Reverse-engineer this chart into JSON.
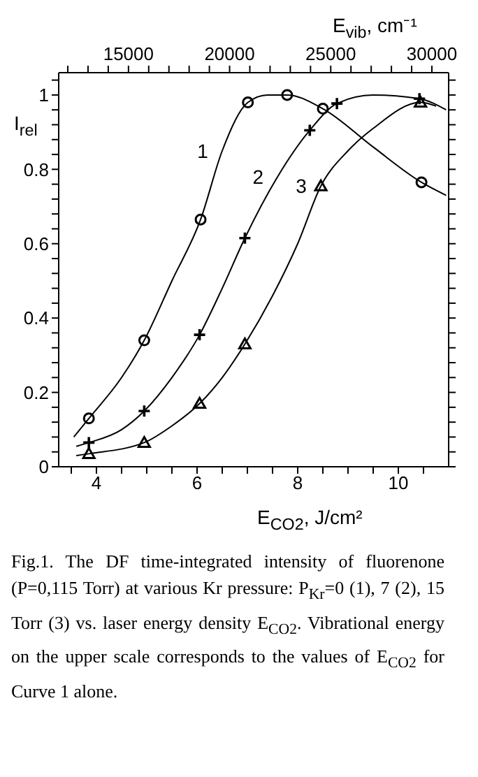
{
  "chart_data": {
    "type": "scatter",
    "xlabel": "E$_{CO2}$, J/cm²",
    "x2label": "E$_{vib}$, cm⁻¹",
    "ylabel": "I$_{rel}$",
    "xlim": [
      3.25,
      11
    ],
    "ylim": [
      0,
      1.06
    ],
    "x2lim": [
      11550,
      30830
    ],
    "xticks": [
      {
        "value": 3.5,
        "label": null
      },
      4,
      {
        "value": 4.5,
        "label": null
      },
      {
        "value": 5,
        "label": null
      },
      {
        "value": 5.5,
        "label": null
      },
      6,
      {
        "value": 6.5,
        "label": null
      },
      {
        "value": 7,
        "label": null
      },
      {
        "value": 7.5,
        "label": null
      },
      8,
      {
        "value": 8.5,
        "label": null
      },
      {
        "value": 9,
        "label": null
      },
      {
        "value": 9.5,
        "label": null
      },
      10,
      {
        "value": 10.5,
        "label": null
      }
    ],
    "x2ticks": [
      {
        "value": 12000,
        "label": null
      },
      {
        "value": 13000,
        "label": null
      },
      {
        "value": 14000,
        "label": null
      },
      15000,
      {
        "value": 16000,
        "label": null
      },
      {
        "value": 17000,
        "label": null
      },
      {
        "value": 18000,
        "label": null
      },
      {
        "value": 19000,
        "label": null
      },
      20000,
      {
        "value": 21000,
        "label": null
      },
      {
        "value": 22000,
        "label": null
      },
      {
        "value": 23000,
        "label": null
      },
      {
        "value": 24000,
        "label": null
      },
      25000,
      {
        "value": 26000,
        "label": null
      },
      {
        "value": 27000,
        "label": null
      },
      {
        "value": 28000,
        "label": null
      },
      {
        "value": 29000,
        "label": null
      },
      30000
    ],
    "yticks": [
      0,
      {
        "value": 0.04,
        "label": null
      },
      {
        "value": 0.08,
        "label": null
      },
      {
        "value": 0.12,
        "label": null
      },
      {
        "value": 0.16,
        "label": null
      },
      0.2,
      {
        "value": 0.24,
        "label": null
      },
      {
        "value": 0.28,
        "label": null
      },
      {
        "value": 0.32,
        "label": null
      },
      {
        "value": 0.36,
        "label": null
      },
      0.4,
      {
        "value": 0.44,
        "label": null
      },
      {
        "value": 0.48,
        "label": null
      },
      {
        "value": 0.52,
        "label": null
      },
      {
        "value": 0.56,
        "label": null
      },
      0.6,
      {
        "value": 0.64,
        "label": null
      },
      {
        "value": 0.68,
        "label": null
      },
      {
        "value": 0.72,
        "label": null
      },
      {
        "value": 0.76,
        "label": null
      },
      0.8,
      {
        "value": 0.84,
        "label": null
      },
      {
        "value": 0.88,
        "label": null
      },
      {
        "value": 0.92,
        "label": null
      },
      {
        "value": 0.96,
        "label": null
      },
      1,
      {
        "value": 1.04,
        "label": null
      }
    ],
    "series": [
      {
        "marker": "circle",
        "color": "#000000",
        "x": [
          3.85,
          4.95,
          6.07,
          7.01,
          7.79,
          8.5,
          10.46
        ],
        "values": [
          0.13,
          0.34,
          0.665,
          0.98,
          1.0,
          0.963,
          0.765
        ]
      },
      {
        "marker": "cross",
        "color": "#000000",
        "x": [
          3.85,
          4.95,
          6.05,
          6.95,
          8.24,
          8.78,
          10.42
        ],
        "values": [
          0.065,
          0.15,
          0.355,
          0.615,
          0.905,
          0.977,
          0.99
        ]
      },
      {
        "marker": "triangle",
        "color": "#000000",
        "x": [
          3.85,
          4.95,
          6.05,
          6.95,
          8.46,
          10.44
        ],
        "values": [
          0.035,
          0.065,
          0.17,
          0.33,
          0.755,
          0.98
        ]
      },
      {
        "type": "line",
        "name": "1",
        "marker": "none",
        "color": "#000000",
        "x": [
          3.55,
          3.85,
          4.5,
          4.95,
          5.5,
          6.07,
          6.5,
          7.01,
          7.4,
          7.79,
          8.5,
          9.5,
          10.46,
          10.95
        ],
        "values": [
          0.08,
          0.13,
          0.24,
          0.34,
          0.5,
          0.665,
          0.85,
          0.98,
          1.0,
          1.0,
          0.963,
          0.86,
          0.765,
          0.73
        ]
      },
      {
        "type": "line",
        "name": "2",
        "marker": "none",
        "color": "#000000",
        "x": [
          3.6,
          3.85,
          4.5,
          4.95,
          5.5,
          6.05,
          6.5,
          6.95,
          7.6,
          8.24,
          8.78,
          9.5,
          10.42,
          10.95
        ],
        "values": [
          0.055,
          0.065,
          0.1,
          0.15,
          0.24,
          0.355,
          0.48,
          0.615,
          0.78,
          0.905,
          0.977,
          1.0,
          0.99,
          0.96
        ]
      },
      {
        "type": "line",
        "name": "3",
        "marker": "none",
        "color": "#000000",
        "x": [
          3.6,
          3.85,
          4.95,
          5.5,
          6.05,
          6.5,
          6.95,
          7.5,
          8.0,
          8.46,
          9.0,
          9.5,
          10.44,
          10.75
        ],
        "values": [
          0.03,
          0.035,
          0.065,
          0.11,
          0.17,
          0.24,
          0.33,
          0.46,
          0.6,
          0.755,
          0.85,
          0.91,
          0.98,
          0.97
        ]
      }
    ],
    "annotations": [
      "Fig.1. The DF time-integrated intensity of fluorenone (P=0,115 Torr) at various Kr pressure: P$_{Kr}$=0 (1), 7 (2), 15 Torr (3) vs. laser energy density E$_{CO2}$. Vibrational energy on the upper scale corresponds to the values of E$_{CO2}$ for Curve 1 alone."
    ]
  }
}
